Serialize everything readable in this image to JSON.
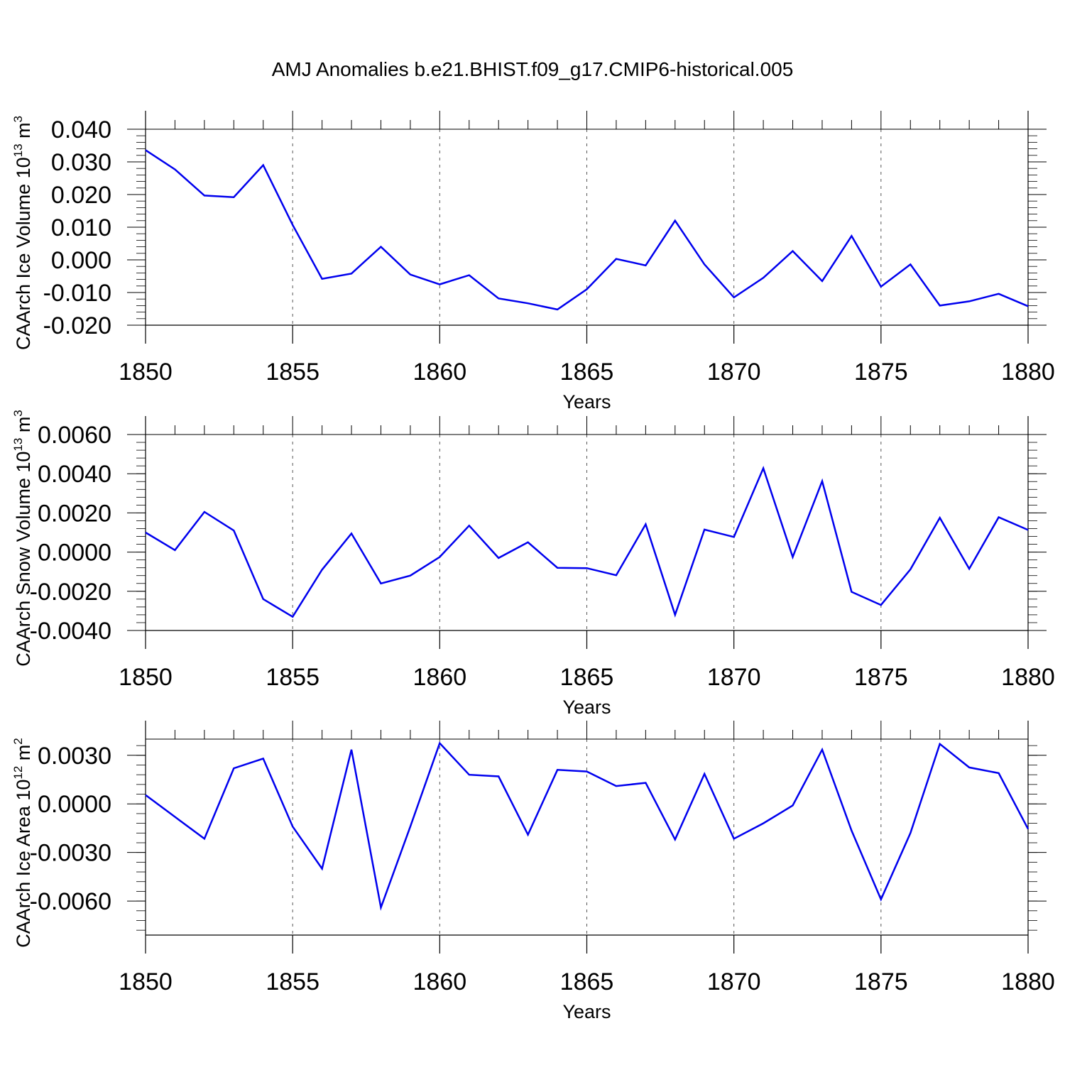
{
  "title": "AMJ Anomalies b.e21.BHIST.f09_g17.CMIP6-historical.005",
  "colors": {
    "line": "#0000ee",
    "axis": "#000000",
    "grid": "#555555"
  },
  "chart_data": [
    {
      "type": "line",
      "ylabel": "CAArch Ice Volume 10",
      "ylabel_sup": "13",
      "ylabel_unit": " m",
      "ylabel_unit_sup": "3",
      "xlabel": "Years",
      "xlim": [
        1850,
        1880
      ],
      "ylim": [
        -0.02,
        0.04
      ],
      "xticks": [
        "1850",
        "1855",
        "1860",
        "1865",
        "1870",
        "1875",
        "1880"
      ],
      "yticks": [
        {
          "v": 0.04,
          "label": "0.040"
        },
        {
          "v": 0.03,
          "label": "0.030"
        },
        {
          "v": 0.02,
          "label": "0.020"
        },
        {
          "v": 0.01,
          "label": "0.010"
        },
        {
          "v": 0.0,
          "label": "0.000"
        },
        {
          "v": -0.01,
          "label": "-0.010"
        },
        {
          "v": -0.02,
          "label": "-0.020"
        }
      ],
      "grid_y": [
        0.04
      ],
      "x": [
        1850,
        1851,
        1852,
        1853,
        1854,
        1855,
        1856,
        1857,
        1858,
        1859,
        1860,
        1861,
        1862,
        1863,
        1864,
        1865,
        1866,
        1867,
        1868,
        1869,
        1870,
        1871,
        1872,
        1873,
        1874,
        1875,
        1876,
        1877,
        1878,
        1879,
        1880
      ],
      "values": [
        0.0336,
        0.0277,
        0.0197,
        0.0192,
        0.029,
        0.0107,
        -0.0058,
        -0.0042,
        0.004,
        -0.0045,
        -0.0075,
        -0.0047,
        -0.0118,
        -0.0133,
        -0.0152,
        -0.009,
        0.0003,
        -0.0017,
        0.012,
        -0.0014,
        -0.0115,
        -0.0055,
        0.0027,
        -0.0065,
        0.0073,
        -0.0082,
        -0.0014,
        -0.014,
        -0.0127,
        -0.0104,
        -0.0142
      ]
    },
    {
      "type": "line",
      "ylabel": "CAArch Snow Volume 10",
      "ylabel_sup": "13",
      "ylabel_unit": " m",
      "ylabel_unit_sup": "3",
      "xlabel": "Years",
      "xlim": [
        1850,
        1880
      ],
      "ylim": [
        -0.004,
        0.006
      ],
      "xticks": [
        "1850",
        "1855",
        "1860",
        "1865",
        "1870",
        "1875",
        "1880"
      ],
      "yticks": [
        {
          "v": 0.006,
          "label": "0.0060"
        },
        {
          "v": 0.004,
          "label": "0.0040"
        },
        {
          "v": 0.002,
          "label": "0.0020"
        },
        {
          "v": 0.0,
          "label": "0.0000"
        },
        {
          "v": -0.002,
          "label": "-0.0020"
        },
        {
          "v": -0.004,
          "label": "-0.0040"
        }
      ],
      "grid_y": [
        0.006
      ],
      "x": [
        1850,
        1851,
        1852,
        1853,
        1854,
        1855,
        1856,
        1857,
        1858,
        1859,
        1860,
        1861,
        1862,
        1863,
        1864,
        1865,
        1866,
        1867,
        1868,
        1869,
        1870,
        1871,
        1872,
        1873,
        1874,
        1875,
        1876,
        1877,
        1878,
        1879,
        1880
      ],
      "values": [
        0.001,
        0.0001,
        0.00205,
        0.0011,
        -0.0024,
        -0.0033,
        -0.0009,
        0.00095,
        -0.0016,
        -0.0012,
        -0.00025,
        0.00135,
        -0.0003,
        0.0005,
        -0.0008,
        -0.00082,
        -0.00118,
        0.00142,
        -0.0032,
        0.00115,
        0.00077,
        0.00428,
        -0.00025,
        0.00362,
        -0.00203,
        -0.0027,
        -0.00088,
        0.00175,
        -0.00085,
        0.00178,
        0.00113
      ]
    },
    {
      "type": "line",
      "ylabel": "CAArch Ice Area 10",
      "ylabel_sup": "12",
      "ylabel_unit": " m",
      "ylabel_unit_sup": "2",
      "xlabel": "Years",
      "xlim": [
        1850,
        1880
      ],
      "ylim": [
        -0.0081,
        0.004
      ],
      "xticks": [
        "1850",
        "1855",
        "1860",
        "1865",
        "1870",
        "1875",
        "1880"
      ],
      "yticks": [
        {
          "v": 0.003,
          "label": "0.0030"
        },
        {
          "v": 0.0,
          "label": "0.0000"
        },
        {
          "v": -0.003,
          "label": "-0.0030"
        },
        {
          "v": -0.006,
          "label": "-0.0060"
        }
      ],
      "grid_y": [
        0.004
      ],
      "x": [
        1850,
        1851,
        1852,
        1853,
        1854,
        1855,
        1856,
        1857,
        1858,
        1859,
        1860,
        1861,
        1862,
        1863,
        1864,
        1865,
        1866,
        1867,
        1868,
        1869,
        1870,
        1871,
        1872,
        1873,
        1874,
        1875,
        1876,
        1877,
        1878,
        1879,
        1880
      ],
      "values": [
        0.00055,
        -0.0008,
        -0.00215,
        0.0022,
        0.0028,
        -0.0014,
        -0.004,
        0.00335,
        -0.0064,
        -0.0014,
        0.00375,
        0.0018,
        0.0017,
        -0.0019,
        0.0021,
        0.002,
        0.0011,
        0.0013,
        -0.0022,
        0.00185,
        -0.00215,
        -0.0012,
        -0.0001,
        0.00335,
        -0.00165,
        -0.0059,
        -0.0018,
        0.0037,
        0.00225,
        0.0019,
        -0.00155
      ]
    }
  ]
}
